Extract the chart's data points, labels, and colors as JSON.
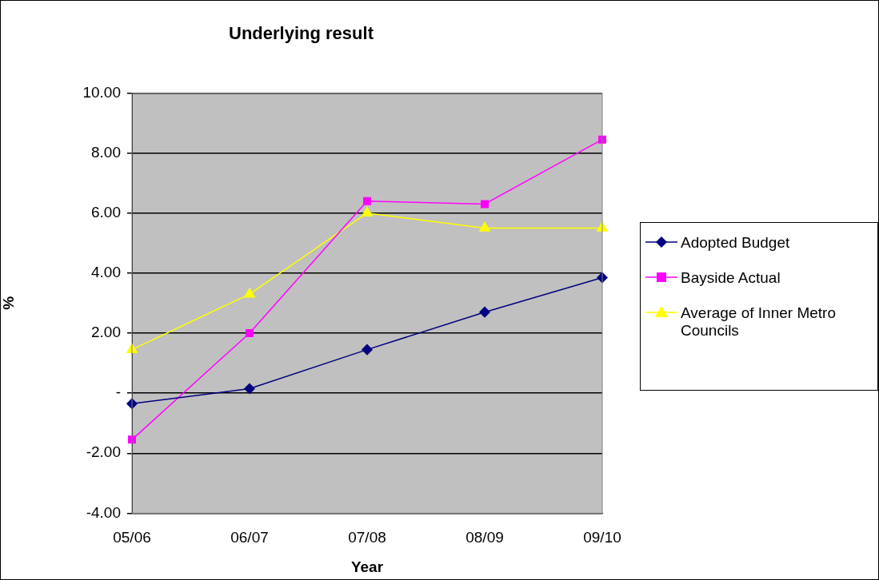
{
  "chart_data": {
    "type": "line",
    "title": "Underlying result",
    "xlabel": "Year",
    "ylabel": "%",
    "categories": [
      "05/06",
      "06/07",
      "07/08",
      "08/09",
      "09/10"
    ],
    "series": [
      {
        "name": "Adopted Budget",
        "color": "#000080",
        "marker": "diamond",
        "values": [
          -0.35,
          0.15,
          1.45,
          2.7,
          3.85
        ]
      },
      {
        "name": "Bayside Actual",
        "color": "#ff00ff",
        "marker": "square",
        "values": [
          -1.55,
          2.0,
          6.4,
          6.3,
          8.45
        ]
      },
      {
        "name": "Average of Inner Metro Councils",
        "color": "#ffff00",
        "marker": "triangle",
        "values": [
          1.45,
          3.3,
          6.0,
          5.5,
          5.5
        ]
      }
    ],
    "ylim": [
      -4,
      10
    ],
    "yticks": [
      {
        "value": -4,
        "label": "-4.00"
      },
      {
        "value": -2,
        "label": "-2.00"
      },
      {
        "value": 0,
        "label": "-"
      },
      {
        "value": 2,
        "label": "2.00"
      },
      {
        "value": 4,
        "label": "4.00"
      },
      {
        "value": 6,
        "label": "6.00"
      },
      {
        "value": 8,
        "label": "8.00"
      },
      {
        "value": 10,
        "label": "10.00"
      }
    ],
    "grid": "y",
    "legend": "right"
  }
}
